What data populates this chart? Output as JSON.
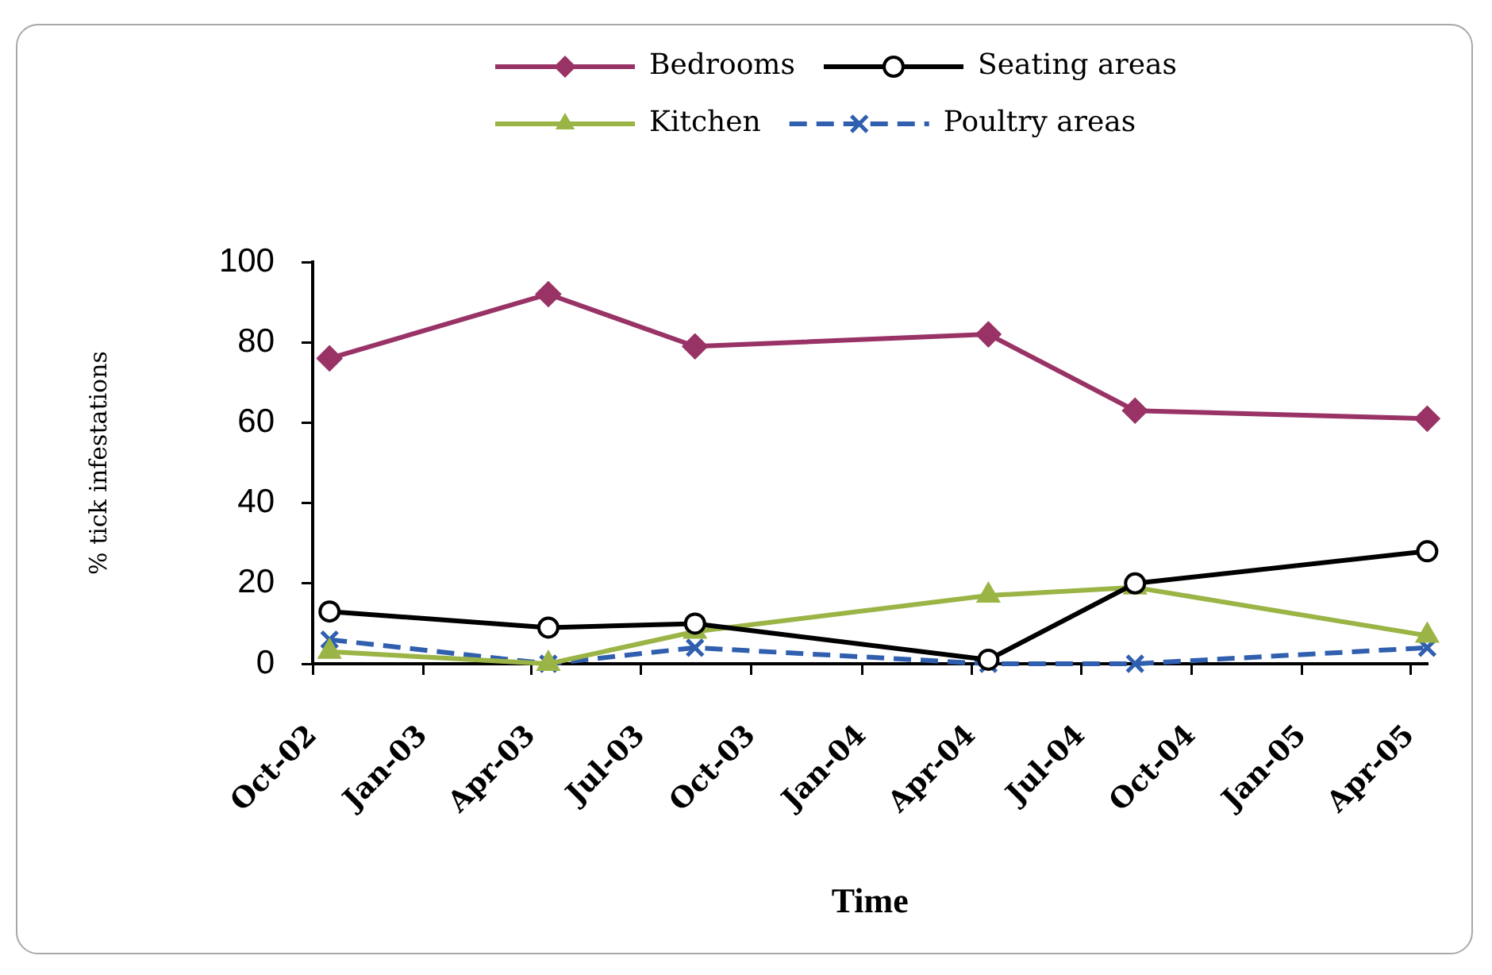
{
  "chart_data": {
    "type": "line",
    "xlabel": "Time",
    "ylabel": "% tick infestations",
    "legend": "top",
    "x": [
      "2002-10-15",
      "2003-04-15",
      "2003-08-15",
      "2004-04-15",
      "2004-08-15",
      "2005-04-15"
    ],
    "xlim": [
      "2002-10",
      "2005-04-15"
    ],
    "xticks": [
      {
        "value": "2002-10",
        "label": "Oct-02"
      },
      {
        "value": "2003-01",
        "label": "Jan-03"
      },
      {
        "value": "2003-04",
        "label": "Apr-03"
      },
      {
        "value": "2003-07",
        "label": "Jul-03"
      },
      {
        "value": "2003-10",
        "label": "Oct-03"
      },
      {
        "value": "2004-01",
        "label": "Jan-04"
      },
      {
        "value": "2004-04",
        "label": "Apr-04"
      },
      {
        "value": "2004-07",
        "label": "Jul-04"
      },
      {
        "value": "2004-10",
        "label": "Oct-04"
      },
      {
        "value": "2005-01",
        "label": "Jan-05"
      },
      {
        "value": "2005-04",
        "label": "Apr-05"
      }
    ],
    "ylim": [
      0,
      100
    ],
    "yticks": [
      0,
      20,
      40,
      60,
      80,
      100
    ],
    "series": [
      {
        "name": "Bedrooms",
        "color": "#993366",
        "marker": "diamond",
        "values": [
          76,
          92,
          79,
          82,
          63,
          61
        ]
      },
      {
        "name": "Seating areas",
        "color": "#000000",
        "marker": "circle",
        "values": [
          13,
          9,
          10,
          1,
          20,
          28
        ]
      },
      {
        "name": "Kitchen",
        "color": "#9bb446",
        "marker": "triangle",
        "values": [
          3,
          0,
          8,
          17,
          19,
          7
        ]
      },
      {
        "name": "Poultry areas",
        "color": "#2f5fae",
        "marker": "cross",
        "line_style": "dashed",
        "values": [
          6,
          0,
          4,
          0,
          0,
          4
        ]
      }
    ]
  }
}
